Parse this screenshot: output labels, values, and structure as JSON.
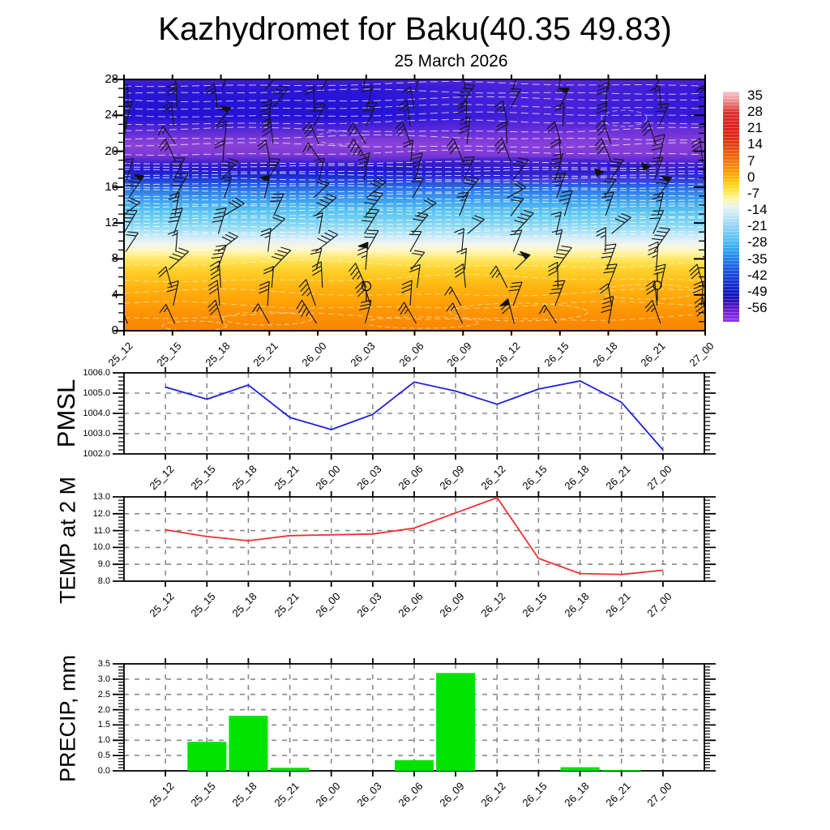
{
  "title": "Kazhydromet for Baku(40.35 49.83)",
  "subtitle": "25 March 2026",
  "time_labels": [
    "25_12",
    "25_15",
    "25_18",
    "25_21",
    "26_00",
    "26_03",
    "26_06",
    "26_09",
    "26_12",
    "26_15",
    "26_18",
    "26_21",
    "27_00"
  ],
  "upper_panel": {
    "y_tick_labels": [
      "28",
      "24",
      "20",
      "16",
      "12",
      "8",
      "4",
      "0"
    ],
    "colorbar_tick_labels": [
      "35",
      "28",
      "21",
      "14",
      "7",
      "0",
      "-7",
      "-14",
      "-21",
      "-28",
      "-35",
      "-42",
      "-49",
      "-56"
    ]
  },
  "axis_titles": {
    "pmsl": "PMSL",
    "temp": "TEMP at 2 M",
    "precip": "PRECIP, mm"
  },
  "colors": {
    "pmsl_line": "#2020dd",
    "temp_line": "#ee3232",
    "precip_bar": "#00e400",
    "grid": "#8a8a8a"
  },
  "chart_data": [
    {
      "type": "heatmap",
      "name": "upper-air temperature and wind cross-section",
      "x": [
        "25_12",
        "25_15",
        "25_18",
        "25_21",
        "26_00",
        "26_03",
        "26_06",
        "26_09",
        "26_12",
        "26_15",
        "26_18",
        "26_21",
        "27_00"
      ],
      "ylim": [
        0,
        28
      ],
      "y_ticks": [
        0,
        4,
        8,
        12,
        16,
        20,
        24,
        28
      ],
      "colorbar_ticks": [
        35,
        28,
        21,
        14,
        7,
        0,
        -7,
        -14,
        -21,
        -28,
        -35,
        -42,
        -49,
        -56
      ],
      "legend_position": "right",
      "description": "Filled temperature contours (warm orange near surface to cold purple aloft) with black wind barbs and dashed white isotherms"
    },
    {
      "type": "line",
      "name": "PMSL",
      "x": [
        "25_12",
        "25_15",
        "25_18",
        "25_21",
        "26_00",
        "26_03",
        "26_06",
        "26_09",
        "26_12",
        "26_15",
        "26_18",
        "26_21",
        "27_00"
      ],
      "values": [
        1005.3,
        1004.7,
        1005.4,
        1003.8,
        1003.2,
        1003.95,
        1005.55,
        1005.1,
        1004.45,
        1005.2,
        1005.6,
        1004.55,
        1002.2
      ],
      "ylim": [
        1002.0,
        1006.0
      ],
      "ytick_labels": [
        "1006.0",
        "1005.0",
        "1004.0",
        "1003.0",
        "1002.0"
      ],
      "grid": true
    },
    {
      "type": "line",
      "name": "TEMP at 2 M",
      "x": [
        "25_12",
        "25_15",
        "25_18",
        "25_21",
        "26_00",
        "26_03",
        "26_06",
        "26_09",
        "26_12",
        "26_15",
        "26_18",
        "26_21",
        "27_00"
      ],
      "values": [
        11.05,
        10.65,
        10.4,
        10.7,
        10.75,
        10.8,
        11.15,
        12.05,
        12.95,
        9.35,
        8.45,
        8.4,
        8.65
      ],
      "ylim": [
        8.0,
        13.0
      ],
      "ytick_labels": [
        "13.0",
        "12.0",
        "11.0",
        "10.0",
        "9.0",
        "8.0"
      ],
      "grid": true
    },
    {
      "type": "bar",
      "name": "PRECIP, mm",
      "x": [
        "25_12",
        "25_15",
        "25_18",
        "25_21",
        "26_00",
        "26_03",
        "26_06",
        "26_09",
        "26_12",
        "26_15",
        "26_18",
        "26_21",
        "27_00"
      ],
      "values": [
        0,
        0.95,
        1.8,
        0.1,
        0,
        0,
        0.35,
        3.2,
        0,
        0,
        0.12,
        0.03,
        0
      ],
      "ylim": [
        0.0,
        3.5
      ],
      "ytick_labels": [
        "3.5",
        "3.0",
        "2.5",
        "2.0",
        "1.5",
        "1.0",
        "0.5",
        "0.0"
      ],
      "grid": true
    }
  ]
}
